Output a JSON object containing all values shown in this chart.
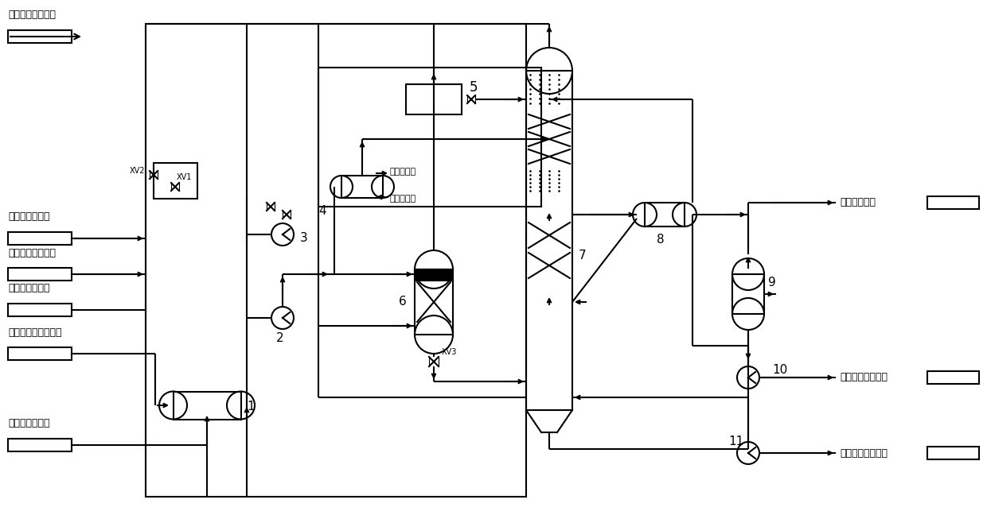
{
  "bg": "#ffffff",
  "lc": "#000000",
  "lw": 1.5,
  "labels": {
    "top_left": "循环气去氧混合器",
    "desalt_water": "脆盐水来自界外",
    "recycle_gas": "循环气来自压缩机",
    "waste_water": "去废水处理系统",
    "regen_gas_top": "再生气来自再生塔顶",
    "regen_cooler": "去再生气冷却器",
    "circ_out": "循环水出水",
    "circ_in": "循环水进水",
    "rich_flash": "富液去闪蜗罐",
    "lean_regen1": "贫液来自再生塔底",
    "lean_regen2": "贫液来自再生塔底"
  }
}
